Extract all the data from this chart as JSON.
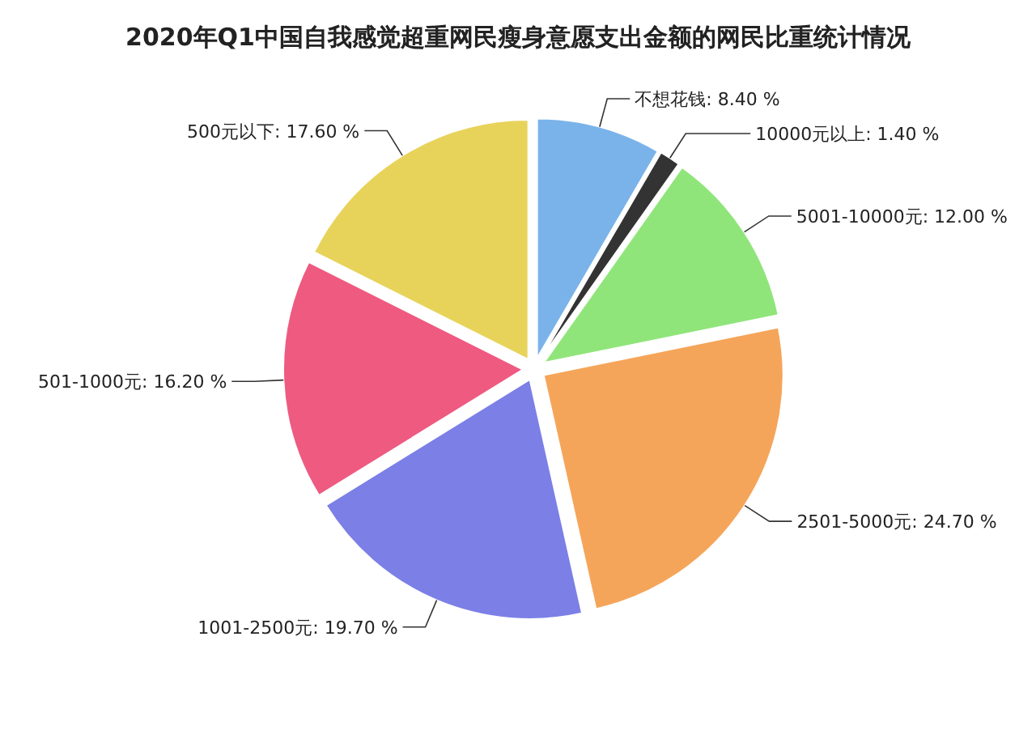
{
  "chart_data": {
    "type": "pie",
    "title": "2020年Q1中国自我感觉超重网民瘦身意愿支出金额的网民比重统计情况",
    "categories": [
      "不想花钱",
      "10000元以上",
      "5001-10000元",
      "2501-5000元",
      "1001-2500元",
      "501-1000元",
      "500元以下"
    ],
    "values": [
      8.4,
      1.4,
      12.0,
      24.7,
      19.7,
      16.2,
      17.6
    ],
    "value_labels": [
      "8.40 %",
      "1.40 %",
      "12.00 %",
      "24.70 %",
      "19.70 %",
      "16.20 %",
      "17.60 %"
    ],
    "colors": [
      "#7ab3ea",
      "#333333",
      "#90e57a",
      "#f5a55a",
      "#7b7fe6",
      "#ee5a80",
      "#e8d35a"
    ]
  }
}
